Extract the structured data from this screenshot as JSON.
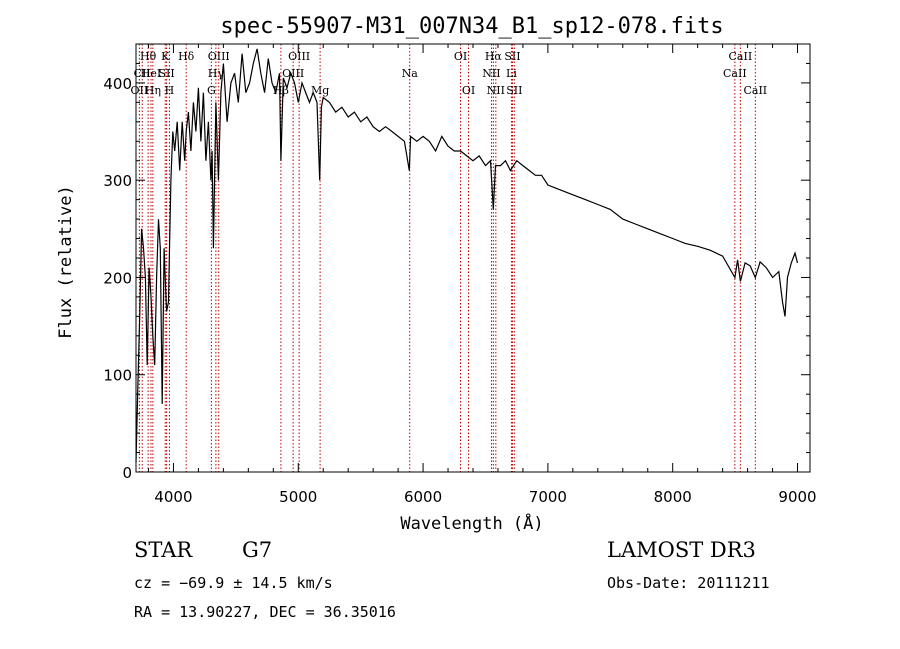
{
  "chart_data": {
    "type": "line",
    "title": "spec-55907-M31_007N34_B1_sp12-078.fits",
    "xlabel": "Wavelength (Å)",
    "ylabel": "Flux (relative)",
    "xlim": [
      3700,
      9100
    ],
    "ylim": [
      0,
      440
    ],
    "xticks": [
      4000,
      5000,
      6000,
      7000,
      8000,
      9000
    ],
    "yticks": [
      0,
      100,
      200,
      300,
      400
    ],
    "grid": false,
    "series": [
      {
        "name": "flux",
        "x": [
          3700,
          3715,
          3730,
          3745,
          3760,
          3775,
          3790,
          3805,
          3820,
          3835,
          3850,
          3865,
          3880,
          3895,
          3910,
          3925,
          3934,
          3945,
          3960,
          3968,
          3980,
          3995,
          4010,
          4030,
          4050,
          4070,
          4090,
          4102,
          4120,
          4140,
          4160,
          4180,
          4200,
          4220,
          4240,
          4260,
          4280,
          4300,
          4310,
          4320,
          4340,
          4360,
          4380,
          4400,
          4430,
          4460,
          4490,
          4520,
          4550,
          4580,
          4610,
          4640,
          4670,
          4700,
          4730,
          4760,
          4790,
          4820,
          4850,
          4861,
          4880,
          4910,
          4940,
          4970,
          5000,
          5030,
          5060,
          5090,
          5120,
          5150,
          5172,
          5185,
          5200,
          5250,
          5300,
          5350,
          5400,
          5450,
          5500,
          5550,
          5600,
          5650,
          5700,
          5750,
          5800,
          5850,
          5890,
          5900,
          5950,
          6000,
          6050,
          6100,
          6150,
          6200,
          6250,
          6300,
          6350,
          6400,
          6450,
          6500,
          6540,
          6563,
          6580,
          6620,
          6660,
          6700,
          6750,
          6800,
          6850,
          6900,
          6950,
          7000,
          7100,
          7200,
          7300,
          7400,
          7500,
          7600,
          7700,
          7800,
          7900,
          8000,
          8100,
          8200,
          8300,
          8400,
          8498,
          8520,
          8542,
          8580,
          8620,
          8662,
          8700,
          8750,
          8800,
          8850,
          8880,
          8900,
          8920,
          8950,
          8980,
          9000
        ],
        "y": [
          10,
          90,
          160,
          250,
          230,
          200,
          110,
          210,
          180,
          140,
          110,
          200,
          260,
          230,
          70,
          230,
          200,
          165,
          175,
          230,
          300,
          350,
          330,
          360,
          310,
          360,
          320,
          350,
          370,
          330,
          380,
          350,
          395,
          340,
          390,
          320,
          360,
          300,
          330,
          230,
          380,
          300,
          390,
          420,
          360,
          400,
          410,
          380,
          430,
          390,
          400,
          420,
          435,
          410,
          390,
          425,
          400,
          390,
          410,
          320,
          405,
          395,
          410,
          400,
          380,
          400,
          390,
          380,
          390,
          380,
          300,
          375,
          385,
          380,
          370,
          375,
          365,
          370,
          360,
          365,
          355,
          350,
          355,
          350,
          345,
          340,
          310,
          345,
          340,
          345,
          340,
          330,
          345,
          335,
          330,
          330,
          325,
          320,
          325,
          315,
          320,
          270,
          315,
          315,
          320,
          310,
          320,
          315,
          310,
          305,
          305,
          295,
          290,
          285,
          280,
          275,
          270,
          260,
          255,
          250,
          245,
          240,
          235,
          232,
          228,
          222,
          200,
          218,
          196,
          215,
          212,
          200,
          216,
          210,
          200,
          206,
          175,
          160,
          200,
          215,
          225,
          215
        ]
      }
    ],
    "spectral_lines": [
      {
        "label": "Hθ",
        "x": 3797,
        "row": 0
      },
      {
        "label": "CII",
        "x": 3750,
        "row": 1
      },
      {
        "label": "OII",
        "x": 3727,
        "row": 2
      },
      {
        "label": "HeI",
        "x": 3820,
        "row": 1
      },
      {
        "label": "Hη",
        "x": 3835,
        "row": 2
      },
      {
        "label": "K",
        "x": 3934,
        "row": 0
      },
      {
        "label": "SII",
        "x": 3945,
        "row": 1
      },
      {
        "label": "H",
        "x": 3968,
        "row": 2
      },
      {
        "label": "Hδ",
        "x": 4102,
        "row": 0
      },
      {
        "label": "OIII",
        "x": 4363,
        "row": 0
      },
      {
        "label": "Hγ",
        "x": 4340,
        "row": 1
      },
      {
        "label": "G",
        "x": 4304,
        "row": 2
      },
      {
        "label": "OIII",
        "x": 5007,
        "row": 0
      },
      {
        "label": "OIII",
        "x": 4959,
        "row": 1
      },
      {
        "label": "Hβ",
        "x": 4861,
        "row": 2
      },
      {
        "label": "Mg",
        "x": 5175,
        "row": 2
      },
      {
        "label": "Na",
        "x": 5893,
        "row": 1
      },
      {
        "label": "OI",
        "x": 6300,
        "row": 0
      },
      {
        "label": "OI",
        "x": 6364,
        "row": 2
      },
      {
        "label": "Hα",
        "x": 6563,
        "row": 0
      },
      {
        "label": "NII",
        "x": 6548,
        "row": 1
      },
      {
        "label": "NII",
        "x": 6583,
        "row": 2
      },
      {
        "label": "SII",
        "x": 6716,
        "row": 0
      },
      {
        "label": "Li",
        "x": 6708,
        "row": 1
      },
      {
        "label": "SII",
        "x": 6731,
        "row": 2
      },
      {
        "label": "CaII",
        "x": 8542,
        "row": 0
      },
      {
        "label": "CaII",
        "x": 8498,
        "row": 1
      },
      {
        "label": "CaII",
        "x": 8662,
        "row": 2
      }
    ]
  },
  "info": {
    "class_label": "STAR",
    "subclass": "G7",
    "survey": "LAMOST DR3",
    "cz": "cz = −69.9 ± 14.5 km/s",
    "obs_date": "Obs-Date: 20111211",
    "coords": "RA =  13.90227, DEC =  36.35016"
  },
  "colors": {
    "line_marker": "#c00000",
    "spectrum": "#000000"
  }
}
